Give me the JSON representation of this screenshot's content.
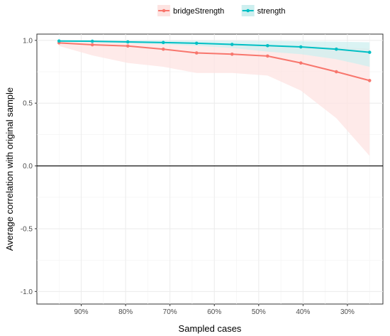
{
  "chart_data": {
    "type": "line",
    "title": "",
    "xlabel": "Sampled cases",
    "ylabel": "Average correlation with original sample",
    "xlim": [
      1.0,
      0.22
    ],
    "ylim": [
      -1.1,
      1.05
    ],
    "x_reversed": true,
    "x_ticks": [
      {
        "value": 0.9,
        "label": "90%"
      },
      {
        "value": 0.8,
        "label": "80%"
      },
      {
        "value": 0.7,
        "label": "70%"
      },
      {
        "value": 0.6,
        "label": "60%"
      },
      {
        "value": 0.5,
        "label": "50%"
      },
      {
        "value": 0.4,
        "label": "40%"
      },
      {
        "value": 0.3,
        "label": "30%"
      }
    ],
    "y_ticks": [
      {
        "value": 1.0,
        "label": "1.0"
      },
      {
        "value": 0.5,
        "label": "0.5"
      },
      {
        "value": 0.0,
        "label": "0.0"
      },
      {
        "value": -0.5,
        "label": "-0.5"
      },
      {
        "value": -1.0,
        "label": "-1.0"
      }
    ],
    "reference_line_y": 0.0,
    "grid": true,
    "legend_position": "top",
    "x": [
      0.95,
      0.875,
      0.795,
      0.715,
      0.64,
      0.56,
      0.48,
      0.405,
      0.325,
      0.25
    ],
    "series": [
      {
        "name": "bridgeStrength",
        "color": "#F8766D",
        "band_color": "#FDE3E1",
        "values": [
          0.98,
          0.965,
          0.955,
          0.93,
          0.9,
          0.89,
          0.875,
          0.82,
          0.75,
          0.68
        ],
        "lower": [
          0.955,
          0.88,
          0.82,
          0.79,
          0.74,
          0.74,
          0.72,
          0.6,
          0.38,
          0.08
        ],
        "upper": [
          0.995,
          0.99,
          0.985,
          0.98,
          0.975,
          0.97,
          0.965,
          0.955,
          0.945,
          0.935
        ]
      },
      {
        "name": "strength",
        "color": "#00BFC4",
        "band_color": "#CDEFEF",
        "values": [
          0.995,
          0.993,
          0.988,
          0.983,
          0.977,
          0.968,
          0.958,
          0.948,
          0.93,
          0.905
        ],
        "lower": [
          0.99,
          0.985,
          0.977,
          0.968,
          0.957,
          0.94,
          0.91,
          0.89,
          0.85,
          0.79
        ],
        "upper": [
          1.0,
          1.0,
          0.999,
          0.998,
          0.997,
          0.996,
          0.995,
          0.993,
          0.99,
          0.985
        ]
      }
    ]
  }
}
